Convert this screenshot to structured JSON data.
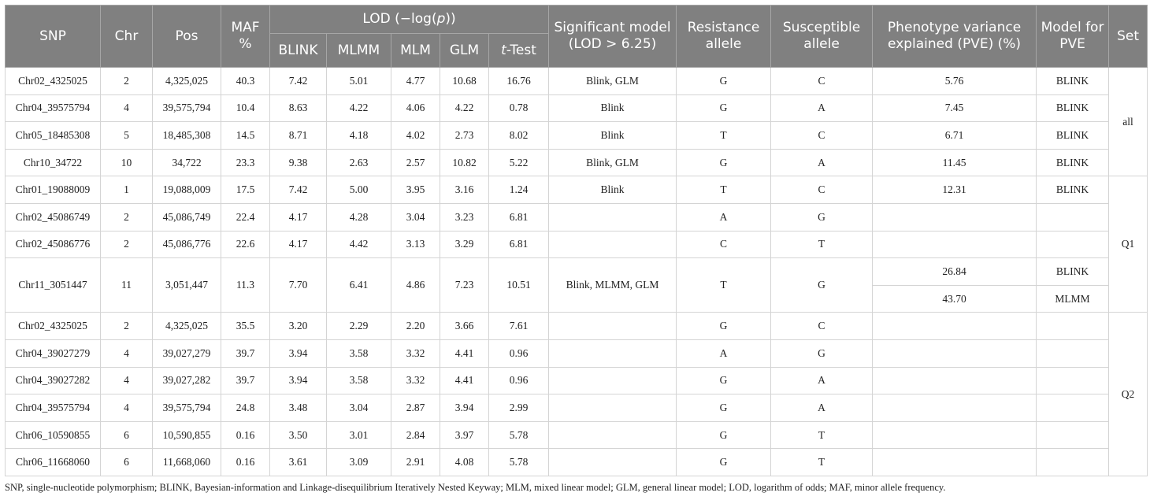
{
  "header": {
    "snp": "SNP",
    "chr": "Chr",
    "pos": "Pos",
    "maf": "MAF %",
    "lod": {
      "pre": "LOD (−log(",
      "italic": "p",
      "post": "))"
    },
    "lod_models": [
      "BLINK",
      "MLMM",
      "MLM",
      "GLM"
    ],
    "ttest": {
      "italic": "t",
      "rest": "-Test"
    },
    "significant": "Significant model (LOD > 6.25)",
    "resistance": "Resistance allele",
    "susceptible": "Susceptible allele",
    "pve": "Phenotype variance explained (PVE) (%)",
    "model": "Model for PVE",
    "set": "Set"
  },
  "groups": [
    {
      "set": "all",
      "rows": [
        {
          "snp": "Chr02_4325025",
          "chr": "2",
          "pos": "4,325,025",
          "maf": "40.3",
          "lod": [
            "7.42",
            "5.01",
            "4.77",
            "10.68",
            "16.76"
          ],
          "significant": "Blink, GLM",
          "resistance": "G",
          "susceptible": "C",
          "pve": [
            {
              "value": "5.76",
              "model": "BLINK"
            }
          ]
        },
        {
          "snp": "Chr04_39575794",
          "chr": "4",
          "pos": "39,575,794",
          "maf": "10.4",
          "lod": [
            "8.63",
            "4.22",
            "4.06",
            "4.22",
            "0.78"
          ],
          "significant": "Blink",
          "resistance": "G",
          "susceptible": "A",
          "pve": [
            {
              "value": "7.45",
              "model": "BLINK"
            }
          ]
        },
        {
          "snp": "Chr05_18485308",
          "chr": "5",
          "pos": "18,485,308",
          "maf": "14.5",
          "lod": [
            "8.71",
            "4.18",
            "4.02",
            "2.73",
            "8.02"
          ],
          "significant": "Blink",
          "resistance": "T",
          "susceptible": "C",
          "pve": [
            {
              "value": "6.71",
              "model": "BLINK"
            }
          ]
        },
        {
          "snp": "Chr10_34722",
          "chr": "10",
          "pos": "34,722",
          "maf": "23.3",
          "lod": [
            "9.38",
            "2.63",
            "2.57",
            "10.82",
            "5.22"
          ],
          "significant": "Blink, GLM",
          "resistance": "G",
          "susceptible": "A",
          "pve": [
            {
              "value": "11.45",
              "model": "BLINK"
            }
          ]
        }
      ]
    },
    {
      "set": "Q1",
      "rows": [
        {
          "snp": "Chr01_19088009",
          "chr": "1",
          "pos": "19,088,009",
          "maf": "17.5",
          "lod": [
            "7.42",
            "5.00",
            "3.95",
            "3.16",
            "1.24"
          ],
          "significant": "Blink",
          "resistance": "T",
          "susceptible": "C",
          "pve": [
            {
              "value": "12.31",
              "model": "BLINK"
            }
          ]
        },
        {
          "snp": "Chr02_45086749",
          "chr": "2",
          "pos": "45,086,749",
          "maf": "22.4",
          "lod": [
            "4.17",
            "4.28",
            "3.04",
            "3.23",
            "6.81"
          ],
          "resistance": "A",
          "susceptible": "G"
        },
        {
          "snp": "Chr02_45086776",
          "chr": "2",
          "pos": "45,086,776",
          "maf": "22.6",
          "lod": [
            "4.17",
            "4.42",
            "3.13",
            "3.29",
            "6.81"
          ],
          "resistance": "C",
          "susceptible": "T"
        },
        {
          "snp": "Chr11_3051447",
          "chr": "11",
          "pos": "3,051,447",
          "maf": "11.3",
          "lod": [
            "7.70",
            "6.41",
            "4.86",
            "7.23",
            "10.51"
          ],
          "significant": "Blink, MLMM, GLM",
          "resistance": "T",
          "susceptible": "G",
          "pve": [
            {
              "value": "26.84",
              "model": "BLINK"
            },
            {
              "value": "43.70",
              "model": "MLMM"
            }
          ]
        }
      ]
    },
    {
      "set": "Q2",
      "rows": [
        {
          "snp": "Chr02_4325025",
          "chr": "2",
          "pos": "4,325,025",
          "maf": "35.5",
          "lod": [
            "3.20",
            "2.29",
            "2.20",
            "3.66",
            "7.61"
          ],
          "resistance": "G",
          "susceptible": "C"
        },
        {
          "snp": "Chr04_39027279",
          "chr": "4",
          "pos": "39,027,279",
          "maf": "39.7",
          "lod": [
            "3.94",
            "3.58",
            "3.32",
            "4.41",
            "0.96"
          ],
          "resistance": "A",
          "susceptible": "G"
        },
        {
          "snp": "Chr04_39027282",
          "chr": "4",
          "pos": "39,027,282",
          "maf": "39.7",
          "lod": [
            "3.94",
            "3.58",
            "3.32",
            "4.41",
            "0.96"
          ],
          "resistance": "G",
          "susceptible": "A"
        },
        {
          "snp": "Chr04_39575794",
          "chr": "4",
          "pos": "39,575,794",
          "maf": "24.8",
          "lod": [
            "3.48",
            "3.04",
            "2.87",
            "3.94",
            "2.99"
          ],
          "resistance": "G",
          "susceptible": "A"
        },
        {
          "snp": "Chr06_10590855",
          "chr": "6",
          "pos": "10,590,855",
          "maf": "0.16",
          "lod": [
            "3.50",
            "3.01",
            "2.84",
            "3.97",
            "5.78"
          ],
          "resistance": "G",
          "susceptible": "T"
        },
        {
          "snp": "Chr06_11668060",
          "chr": "6",
          "pos": "11,668,060",
          "maf": "0.16",
          "lod": [
            "3.61",
            "3.09",
            "2.91",
            "4.08",
            "5.78"
          ],
          "resistance": "G",
          "susceptible": "T"
        }
      ]
    }
  ],
  "footnote": "SNP, single-nucleotide polymorphism; BLINK, Bayesian-information and Linkage-disequilibrium Iteratively Nested Keyway; MLM, mixed linear model; GLM, general linear model; LOD, logarithm of odds; MAF, minor allele frequency."
}
